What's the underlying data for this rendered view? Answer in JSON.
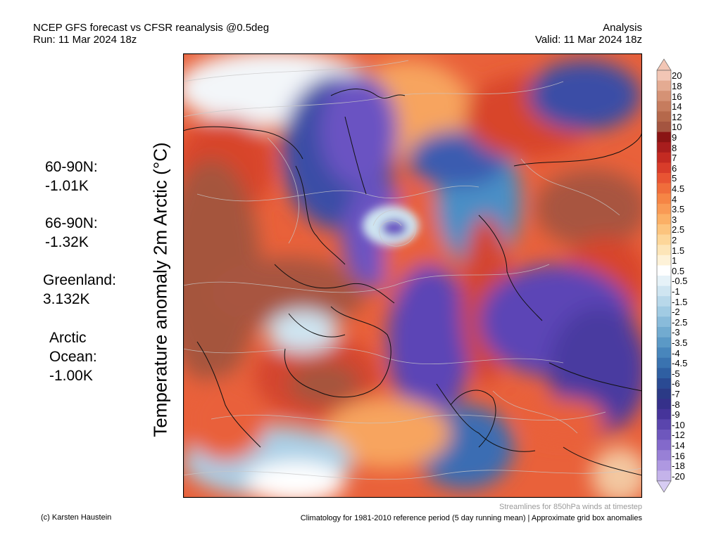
{
  "header": {
    "title_line1": "NCEP GFS forecast vs CFSR reanalysis @0.5deg",
    "title_line2": "Run: 11 Mar 2024 18z",
    "right_line1": "Analysis",
    "right_line2": "Valid: 11 Mar 2024 18z"
  },
  "stats": [
    {
      "label": "60-90N:",
      "value": " -1.01K"
    },
    {
      "label": "66-90N:",
      "value": " -1.32K"
    },
    {
      "label": "Greenland:",
      "value": " 3.132K"
    },
    {
      "label": "Arctic",
      "label2": "Ocean:",
      "value": "-1.00K"
    }
  ],
  "ylabel": "Temperature anomaly 2m Arctic (°C)",
  "colorbar": {
    "labels": [
      "20",
      "18",
      "16",
      "14",
      "12",
      "10",
      "9",
      "8",
      "7",
      "6",
      "5",
      "4.5",
      "4",
      "3.5",
      "3",
      "2.5",
      "2",
      "1.5",
      "1",
      "0.5",
      "-0.5",
      "-1",
      "-1.5",
      "-2",
      "-2.5",
      "-3",
      "-3.5",
      "-4",
      "-4.5",
      "-5",
      "-6",
      "-7",
      "-8",
      "-9",
      "-10",
      "-12",
      "-14",
      "-16",
      "-18",
      "-20"
    ],
    "colors": [
      "#f2c6b5",
      "#e4ab92",
      "#d59275",
      "#c67c5e",
      "#b5684b",
      "#a45540",
      "#8a1414",
      "#a81d1d",
      "#c32a22",
      "#d83c2a",
      "#e85433",
      "#f06d3b",
      "#f68545",
      "#f99a55",
      "#fbb066",
      "#fcc47e",
      "#fdd699",
      "#fde5b8",
      "#fef2d8",
      "#ffffff",
      "#e6f2f8",
      "#cfe5f1",
      "#b8d8ea",
      "#a1cbe3",
      "#89bbda",
      "#72abd0",
      "#5b99c6",
      "#4886bc",
      "#3a73b0",
      "#2f5fa2",
      "#2a4a93",
      "#2b3a86",
      "#35308a",
      "#46349a",
      "#5a45ad",
      "#6e57bd",
      "#8369cb",
      "#9880d6",
      "#ae98e1",
      "#c4b3ea"
    ],
    "top_arrow_color": "#f2c6b5",
    "bottom_arrow_color": "#d7ccf3"
  },
  "footer": {
    "credit": "(c) Karsten Haustein",
    "streamlines_note": "Streamlines for 850hPa winds at timestep",
    "climatology_note": "Climatology for 1981-2010 reference period (5 day running mean) | Approximate grid box anomalies"
  }
}
